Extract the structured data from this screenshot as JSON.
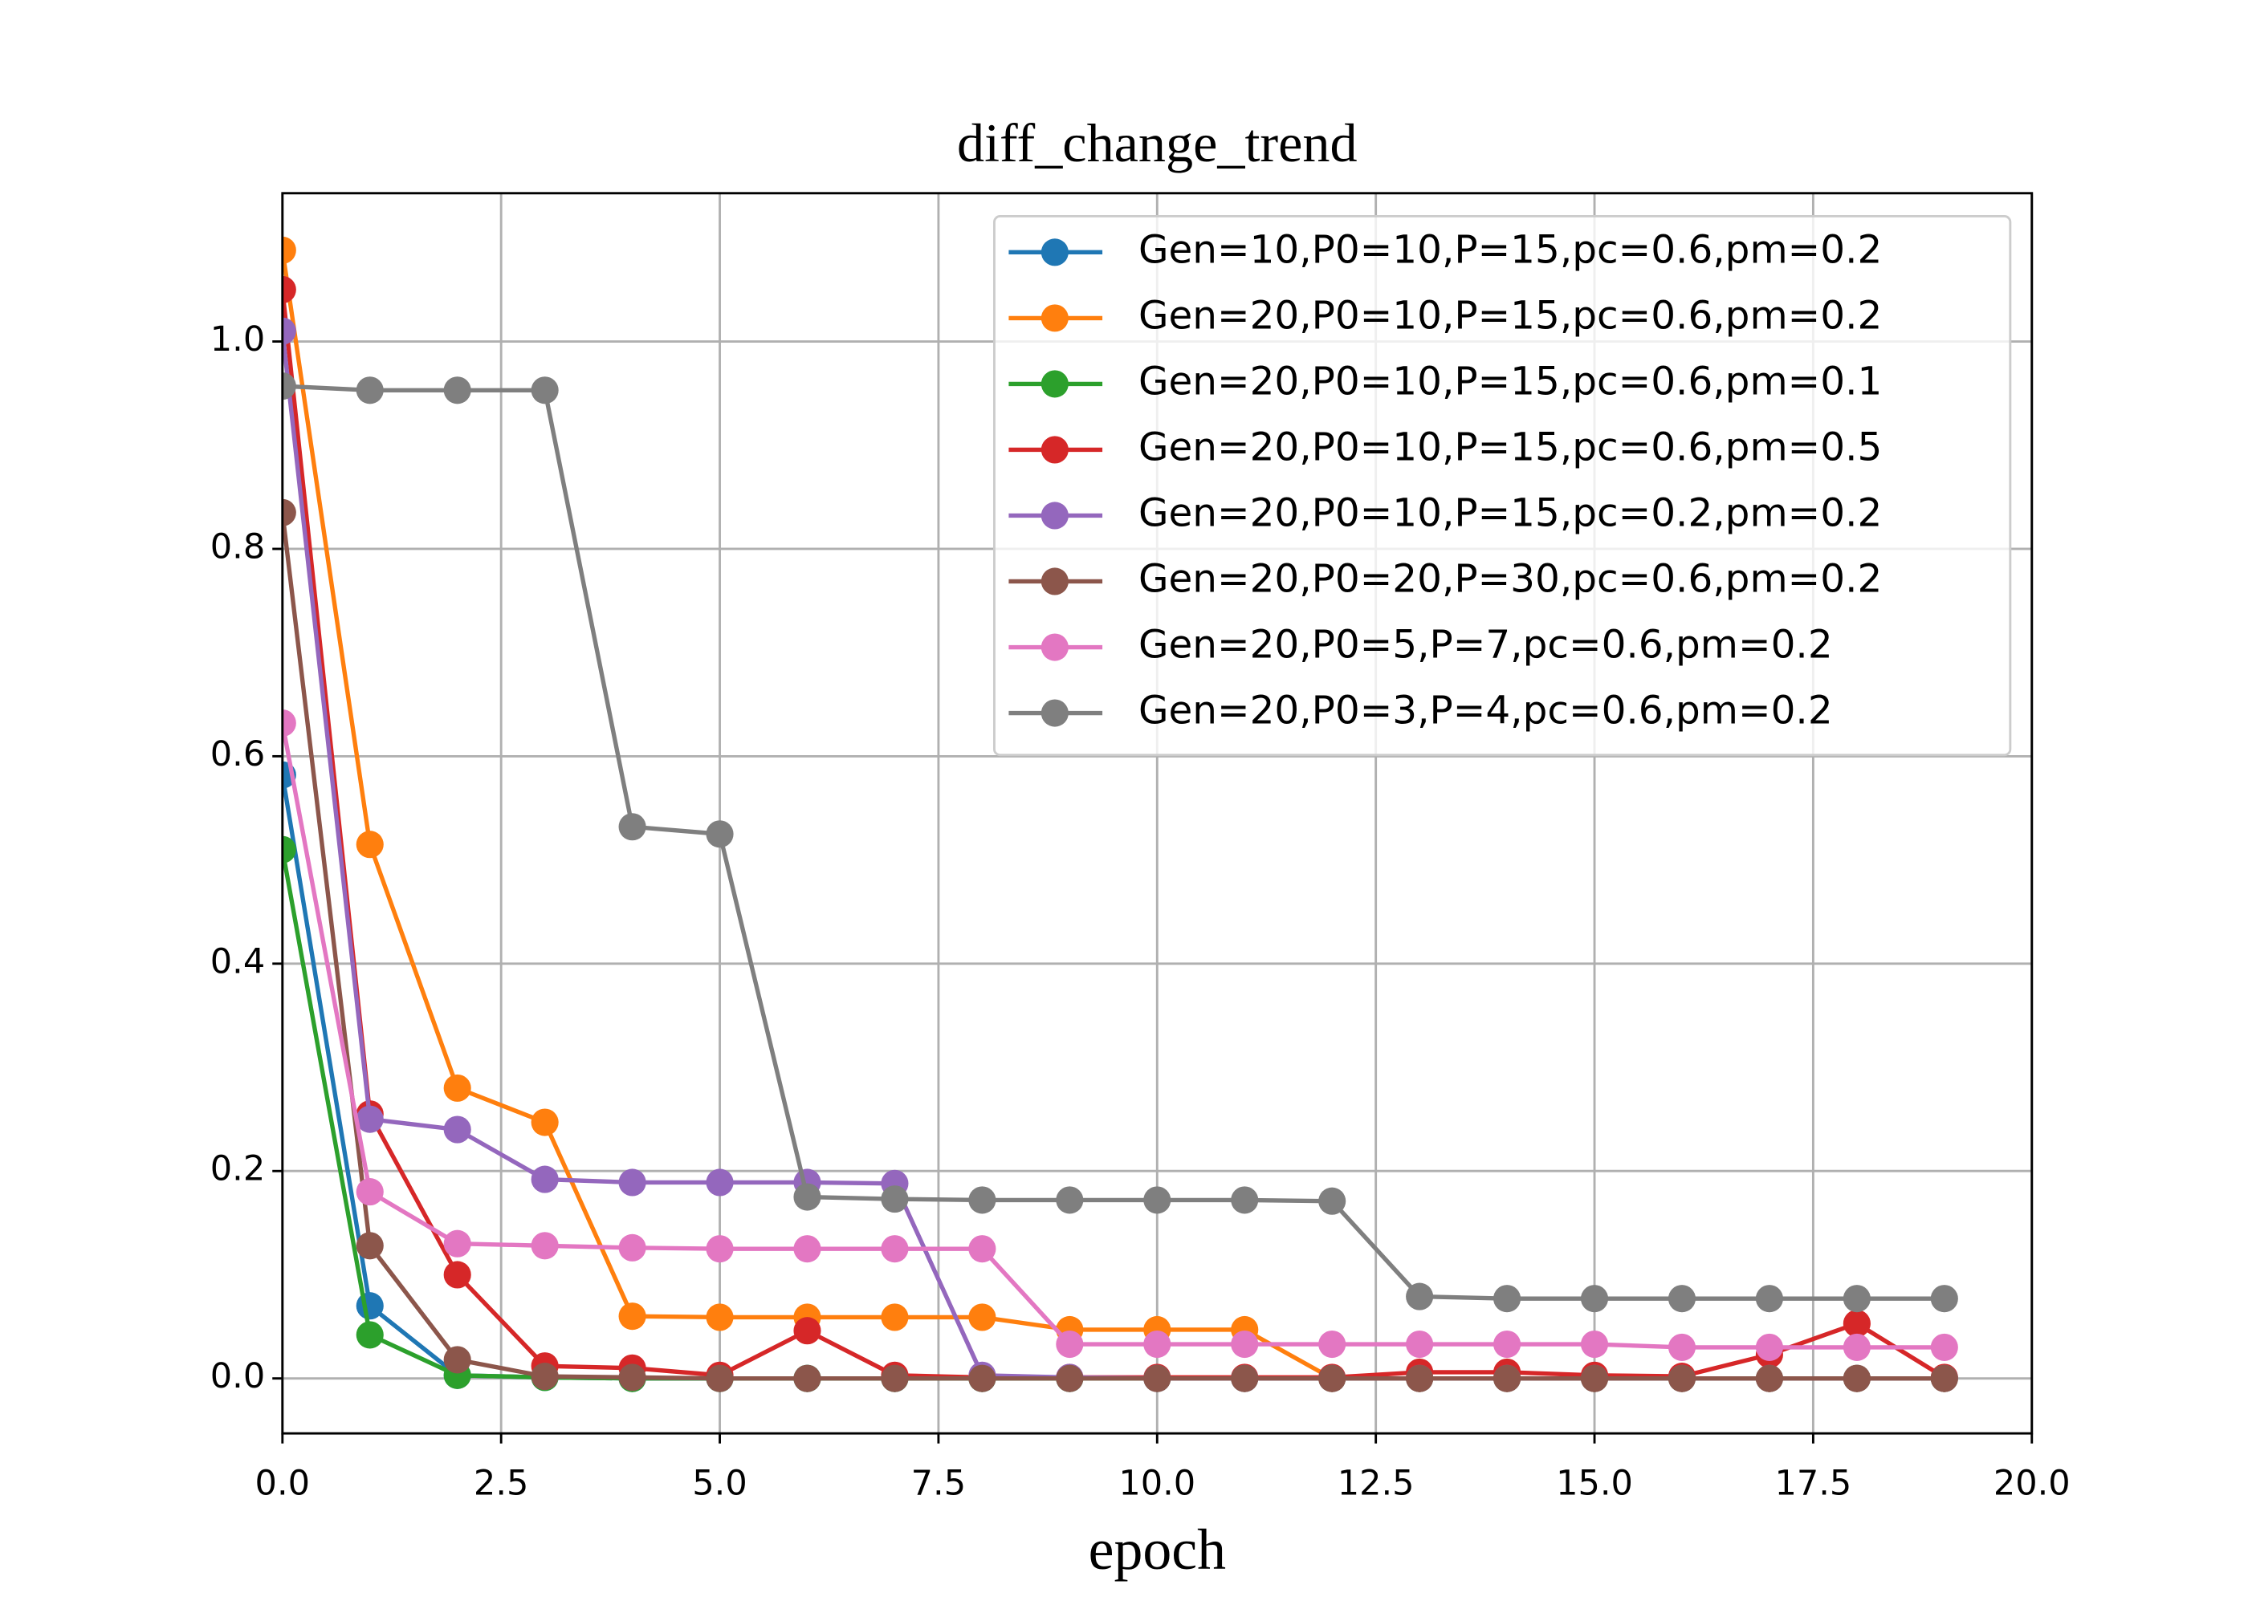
{
  "chart_data": {
    "type": "line",
    "title": "diff_change_trend",
    "x_label": "epoch",
    "xlim": [
      0,
      20
    ],
    "ylim": [
      -0.053,
      1.143
    ],
    "xticks": [
      {
        "value": 0,
        "label": "0.0"
      },
      {
        "value": 2.5,
        "label": "2.5"
      },
      {
        "value": 5,
        "label": "5.0"
      },
      {
        "value": 7.5,
        "label": "7.5"
      },
      {
        "value": 10,
        "label": "10.0"
      },
      {
        "value": 12.5,
        "label": "12.5"
      },
      {
        "value": 15,
        "label": "15.0"
      },
      {
        "value": 17.5,
        "label": "17.5"
      },
      {
        "value": 20,
        "label": "20.0"
      }
    ],
    "yticks": [
      {
        "value": 0,
        "label": "0.0"
      },
      {
        "value": 0.2,
        "label": "0.2"
      },
      {
        "value": 0.4,
        "label": "0.4"
      },
      {
        "value": 0.6,
        "label": "0.6"
      },
      {
        "value": 0.8,
        "label": "0.8"
      },
      {
        "value": 1,
        "label": "1.0"
      }
    ],
    "grid": true,
    "legend": "upper right",
    "series": [
      {
        "name": "Gen=10,P0=10,P=15,pc=0.6,pm=0.2",
        "color": "#1f77b4",
        "x": [
          0,
          1,
          2,
          3,
          4,
          5,
          6,
          7,
          8,
          9
        ],
        "values": [
          0.582,
          0.07,
          0.003,
          0.001,
          0,
          0,
          0,
          0,
          0,
          0
        ]
      },
      {
        "name": "Gen=20,P0=10,P=15,pc=0.6,pm=0.2",
        "color": "#ff7f0e",
        "x": [
          0,
          1,
          2,
          3,
          4,
          5,
          6,
          7,
          8,
          9,
          10,
          11,
          12,
          13,
          14,
          15,
          16,
          17,
          18,
          19
        ],
        "values": [
          1.088,
          0.515,
          0.28,
          0.247,
          0.06,
          0.059,
          0.059,
          0.059,
          0.059,
          0.047,
          0.047,
          0.047,
          0,
          0,
          0,
          0,
          0,
          0,
          0,
          0
        ]
      },
      {
        "name": "Gen=20,P0=10,P=15,pc=0.6,pm=0.1",
        "color": "#2ca02c",
        "x": [
          0,
          1,
          2,
          3,
          4,
          5,
          6,
          7,
          8,
          9,
          10,
          11,
          12,
          13,
          14,
          15,
          16,
          17,
          18,
          19
        ],
        "values": [
          0.51,
          0.042,
          0.003,
          0.001,
          0,
          0,
          0,
          0,
          0,
          0,
          0,
          0,
          0,
          0,
          0,
          0,
          0,
          0,
          0,
          0
        ]
      },
      {
        "name": "Gen=20,P0=10,P=15,pc=0.6,pm=0.5",
        "color": "#d62728",
        "x": [
          0,
          1,
          2,
          3,
          4,
          5,
          6,
          7,
          8,
          9,
          10,
          11,
          12,
          13,
          14,
          15,
          16,
          17,
          18,
          19
        ],
        "values": [
          1.05,
          0.255,
          0.1,
          0.012,
          0.01,
          0.003,
          0.046,
          0.003,
          0.001,
          0.001,
          0.001,
          0.001,
          0.001,
          0.006,
          0.006,
          0.003,
          0.002,
          0.023,
          0.053,
          0.001
        ]
      },
      {
        "name": "Gen=20,P0=10,P=15,pc=0.2,pm=0.2",
        "color": "#9467bd",
        "x": [
          0,
          1,
          2,
          3,
          4,
          5,
          6,
          7,
          8,
          9,
          10,
          11,
          12,
          13,
          14,
          15,
          16,
          17,
          18,
          19
        ],
        "values": [
          1.01,
          0.25,
          0.24,
          0.192,
          0.189,
          0.189,
          0.189,
          0.188,
          0.003,
          0.001,
          0,
          0,
          0,
          0,
          0,
          0,
          0,
          0,
          0,
          0
        ]
      },
      {
        "name": "Gen=20,P0=20,P=30,pc=0.6,pm=0.2",
        "color": "#8c564b",
        "x": [
          0,
          1,
          2,
          3,
          4,
          5,
          6,
          7,
          8,
          9,
          10,
          11,
          12,
          13,
          14,
          15,
          16,
          17,
          18,
          19
        ],
        "values": [
          0.835,
          0.128,
          0.018,
          0.002,
          0.001,
          0,
          0,
          0,
          0,
          0,
          0,
          0,
          0,
          0,
          0,
          0,
          0,
          0,
          0,
          0
        ]
      },
      {
        "name": "Gen=20,P0=5,P=7,pc=0.6,pm=0.2",
        "color": "#e377c2",
        "x": [
          0,
          1,
          2,
          3,
          4,
          5,
          6,
          7,
          8,
          9,
          10,
          11,
          12,
          13,
          14,
          15,
          16,
          17,
          18,
          19
        ],
        "values": [
          0.632,
          0.18,
          0.13,
          0.128,
          0.126,
          0.125,
          0.125,
          0.125,
          0.125,
          0.033,
          0.033,
          0.033,
          0.033,
          0.033,
          0.033,
          0.033,
          0.03,
          0.03,
          0.03,
          0.03
        ]
      },
      {
        "name": "Gen=20,P0=3,P=4,pc=0.6,pm=0.2",
        "color": "#7f7f7f",
        "x": [
          0,
          1,
          2,
          3,
          4,
          5,
          6,
          7,
          8,
          9,
          10,
          11,
          12,
          13,
          14,
          15,
          16,
          17,
          18,
          19
        ],
        "values": [
          0.957,
          0.953,
          0.953,
          0.953,
          0.532,
          0.525,
          0.175,
          0.173,
          0.172,
          0.172,
          0.172,
          0.172,
          0.171,
          0.079,
          0.077,
          0.077,
          0.077,
          0.077,
          0.077,
          0.077
        ]
      }
    ]
  }
}
